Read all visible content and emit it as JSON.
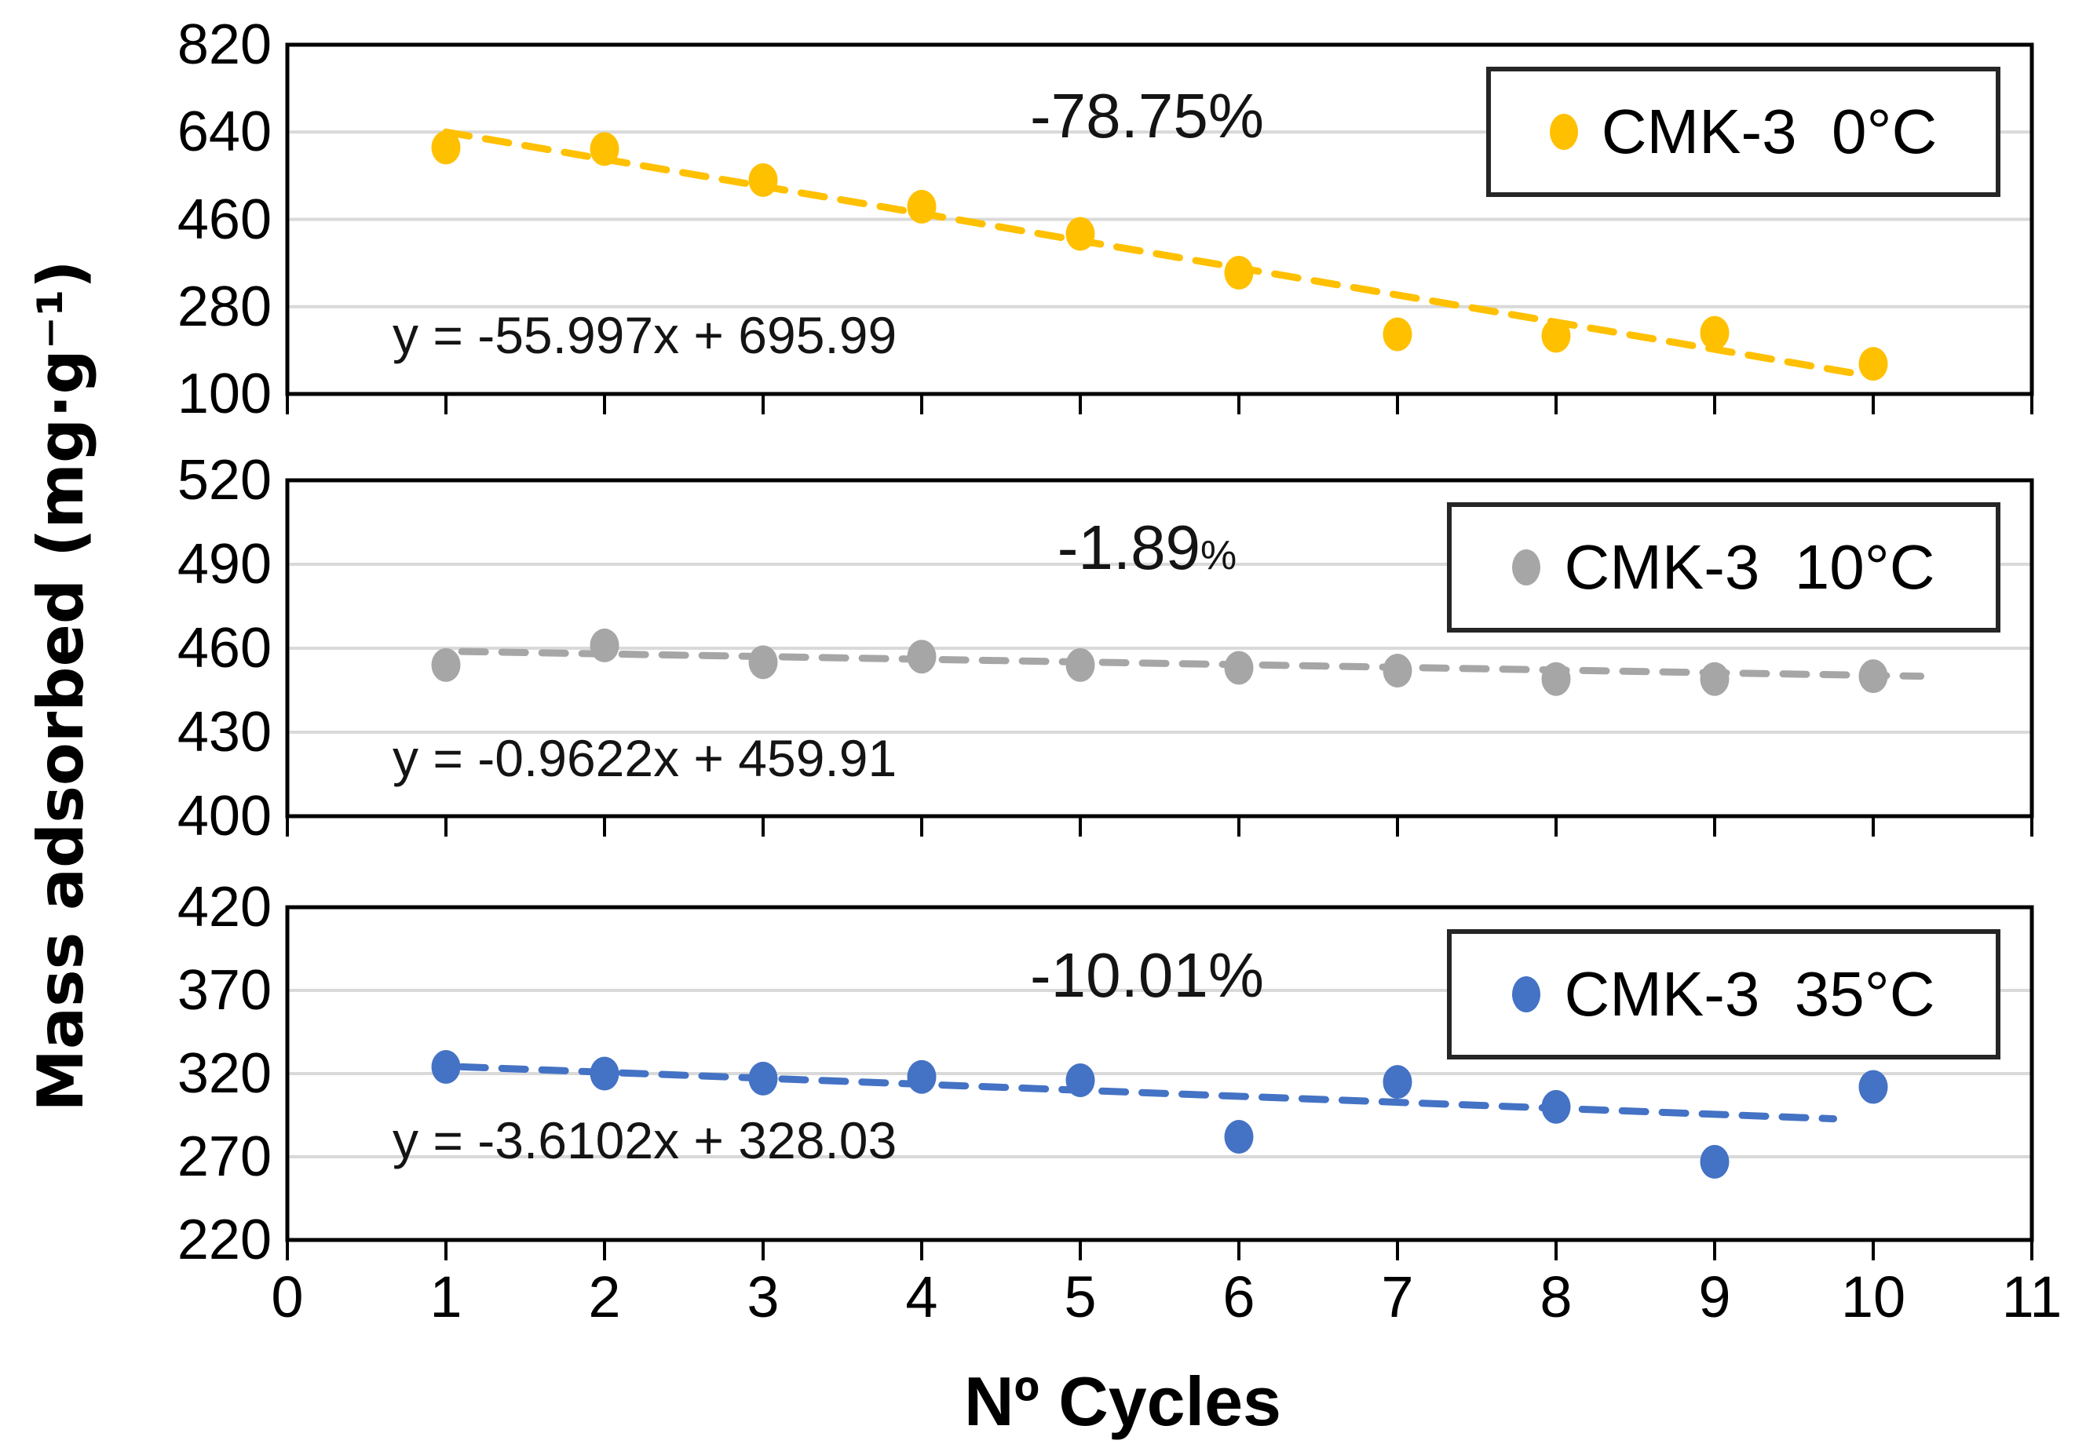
{
  "figure": {
    "ylabel": "Mass adsorbed (mg·g⁻¹)",
    "xlabel": "Nº Cycles",
    "background": "#ffffff",
    "gridline_color": "#d9d9d9",
    "frame_color": "#000000",
    "text_color": "#000000"
  },
  "chart_data": [
    {
      "type": "scatter",
      "panel": "top",
      "legend": "CMK-3  0°C",
      "marker_color": "#FFC000",
      "x": [
        1,
        2,
        3,
        4,
        5,
        6,
        7,
        8,
        9,
        10
      ],
      "y": [
        608,
        605,
        541,
        486,
        430,
        350,
        223,
        220,
        226,
        162
      ],
      "xlim": [
        0,
        11
      ],
      "ylim": [
        100,
        820
      ],
      "yticks": [
        820,
        640,
        460,
        280,
        100
      ],
      "xticks": [
        0,
        1,
        2,
        3,
        4,
        5,
        6,
        7,
        8,
        9,
        10,
        11
      ],
      "x_tick_labels_visible": false,
      "grid": true,
      "legend_position": "top-right",
      "annotation": {
        "text": "-78.75",
        "suffix": "%",
        "suffix_small": false
      },
      "trendline": {
        "equation": "y = -55.997x + 695.99",
        "slope": -55.997,
        "intercept": 695.99,
        "style": "dashed",
        "x_start": 1.0,
        "x_end": 9.9
      }
    },
    {
      "type": "scatter",
      "panel": "middle",
      "legend": "CMK-3  10°C",
      "marker_color": "#A6A6A6",
      "x": [
        1,
        2,
        3,
        4,
        5,
        6,
        7,
        8,
        9,
        10
      ],
      "y": [
        454,
        461,
        455,
        457,
        454,
        453,
        452,
        449,
        449,
        450
      ],
      "xlim": [
        0,
        11
      ],
      "ylim": [
        400,
        520
      ],
      "yticks": [
        520,
        490,
        460,
        430,
        400
      ],
      "xticks": [
        0,
        1,
        2,
        3,
        4,
        5,
        6,
        7,
        8,
        9,
        10,
        11
      ],
      "x_tick_labels_visible": false,
      "grid": true,
      "legend_position": "top-right",
      "annotation": {
        "text": "-1.89",
        "suffix": "%",
        "suffix_small": true
      },
      "trendline": {
        "equation": "y = -0.9622x + 459.91",
        "slope": -0.9622,
        "intercept": 459.91,
        "style": "dashed",
        "x_start": 1.1,
        "x_end": 10.3
      }
    },
    {
      "type": "scatter",
      "panel": "bottom",
      "legend": "CMK-3  35°C",
      "marker_color": "#4472C4",
      "x": [
        1,
        2,
        3,
        4,
        5,
        6,
        7,
        8,
        9,
        10
      ],
      "y": [
        324,
        320,
        317,
        318,
        316,
        282,
        315,
        300,
        267,
        312
      ],
      "xlim": [
        0,
        11
      ],
      "ylim": [
        220,
        420
      ],
      "yticks": [
        420,
        370,
        320,
        270,
        220
      ],
      "xticks": [
        0,
        1,
        2,
        3,
        4,
        5,
        6,
        7,
        8,
        9,
        10,
        11
      ],
      "x_tick_labels_visible": true,
      "grid": true,
      "legend_position": "top-right",
      "annotation": {
        "text": "-10.01",
        "suffix": "%",
        "suffix_small": false
      },
      "trendline": {
        "equation": "y = -3.6102x + 328.03",
        "slope": -3.6102,
        "intercept": 328.03,
        "style": "dashed",
        "x_start": 1.1,
        "x_end": 9.75
      }
    }
  ]
}
